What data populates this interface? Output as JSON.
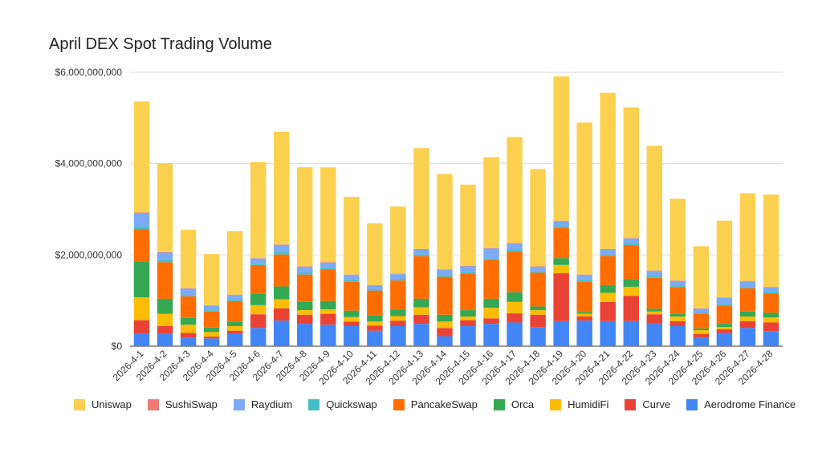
{
  "chart_data": {
    "type": "bar",
    "stacked": true,
    "title": "April DEX Spot Trading Volume",
    "xlabel": "",
    "ylabel": "",
    "ylim": [
      0,
      6000000000
    ],
    "y_ticks": [
      "$0",
      "$2,000,000,000",
      "$4,000,000,000",
      "$6,000,000,000"
    ],
    "grid": true,
    "legend_position": "bottom",
    "categories": [
      "2026-4-1",
      "2026-4-2",
      "2026-4-3",
      "2026-4-4",
      "2026-4-5",
      "2026-4-6",
      "2026-4-7",
      "2026-4-8",
      "2026-4-9",
      "2026-4-10",
      "2026-4-11",
      "2026-4-12",
      "2026-4-13",
      "2026-4-14",
      "2026-4-15",
      "2026-4-16",
      "2026-4-17",
      "2026-4-18",
      "2026-4-19",
      "2026-4-20",
      "2026-4-21",
      "2026-4-22",
      "2026-4-23",
      "2026-4-24",
      "2026-4-25",
      "2026-4-26",
      "2026-4-27",
      "2026-4-28"
    ],
    "series": [
      {
        "name": "Aerodrome Finance",
        "color": "#4285f4",
        "values": [
          270000000,
          280000000,
          180000000,
          170000000,
          280000000,
          400000000,
          560000000,
          490000000,
          470000000,
          440000000,
          340000000,
          440000000,
          490000000,
          220000000,
          440000000,
          490000000,
          520000000,
          420000000,
          550000000,
          560000000,
          550000000,
          550000000,
          510000000,
          440000000,
          180000000,
          290000000,
          400000000,
          330000000
        ]
      },
      {
        "name": "Curve",
        "color": "#ea4335",
        "values": [
          300000000,
          160000000,
          110000000,
          40000000,
          60000000,
          300000000,
          270000000,
          200000000,
          240000000,
          100000000,
          110000000,
          120000000,
          200000000,
          180000000,
          130000000,
          120000000,
          200000000,
          270000000,
          1050000000,
          90000000,
          420000000,
          550000000,
          190000000,
          110000000,
          90000000,
          80000000,
          150000000,
          190000000
        ]
      },
      {
        "name": "HumidiFi",
        "color": "#fbbc04",
        "values": [
          500000000,
          270000000,
          180000000,
          100000000,
          100000000,
          200000000,
          200000000,
          100000000,
          100000000,
          100000000,
          90000000,
          100000000,
          160000000,
          140000000,
          80000000,
          230000000,
          250000000,
          100000000,
          180000000,
          60000000,
          200000000,
          200000000,
          60000000,
          100000000,
          80000000,
          50000000,
          100000000,
          110000000
        ]
      },
      {
        "name": "Orca",
        "color": "#34a853",
        "values": [
          790000000,
          330000000,
          150000000,
          100000000,
          100000000,
          250000000,
          280000000,
          180000000,
          180000000,
          140000000,
          130000000,
          140000000,
          190000000,
          150000000,
          140000000,
          200000000,
          210000000,
          80000000,
          150000000,
          40000000,
          170000000,
          160000000,
          60000000,
          60000000,
          40000000,
          70000000,
          110000000,
          100000000
        ]
      },
      {
        "name": "PancakeSwap",
        "color": "#ff6d01",
        "values": [
          700000000,
          800000000,
          470000000,
          350000000,
          450000000,
          630000000,
          700000000,
          600000000,
          690000000,
          630000000,
          550000000,
          640000000,
          930000000,
          830000000,
          800000000,
          850000000,
          900000000,
          740000000,
          660000000,
          670000000,
          630000000,
          760000000,
          680000000,
          590000000,
          320000000,
          400000000,
          510000000,
          430000000
        ]
      },
      {
        "name": "Quickswap",
        "color": "#46bdc6",
        "values": [
          60000000,
          50000000,
          30000000,
          30000000,
          30000000,
          30000000,
          50000000,
          40000000,
          40000000,
          40000000,
          30000000,
          30000000,
          40000000,
          40000000,
          30000000,
          30000000,
          40000000,
          30000000,
          40000000,
          30000000,
          30000000,
          40000000,
          40000000,
          30000000,
          20000000,
          30000000,
          30000000,
          30000000
        ]
      },
      {
        "name": "Raydium",
        "color": "#7baaf7",
        "values": [
          300000000,
          160000000,
          140000000,
          90000000,
          100000000,
          110000000,
          160000000,
          130000000,
          110000000,
          110000000,
          80000000,
          110000000,
          110000000,
          110000000,
          130000000,
          220000000,
          130000000,
          100000000,
          110000000,
          110000000,
          120000000,
          100000000,
          110000000,
          100000000,
          90000000,
          140000000,
          120000000,
          100000000
        ]
      },
      {
        "name": "SushiSwap",
        "color": "#f07b72",
        "values": [
          10000000,
          10000000,
          10000000,
          10000000,
          10000000,
          10000000,
          10000000,
          10000000,
          10000000,
          10000000,
          10000000,
          10000000,
          10000000,
          10000000,
          10000000,
          10000000,
          10000000,
          10000000,
          10000000,
          10000000,
          10000000,
          10000000,
          10000000,
          10000000,
          10000000,
          10000000,
          10000000,
          10000000
        ]
      },
      {
        "name": "Uniswap",
        "color": "#fcd04f",
        "values": [
          2430000000,
          1950000000,
          1280000000,
          1130000000,
          1390000000,
          2100000000,
          2470000000,
          2170000000,
          2080000000,
          1700000000,
          1350000000,
          1470000000,
          2210000000,
          2090000000,
          1780000000,
          1990000000,
          2320000000,
          2130000000,
          3160000000,
          3330000000,
          3420000000,
          2860000000,
          2730000000,
          1790000000,
          1360000000,
          1680000000,
          1920000000,
          2020000000
        ]
      }
    ]
  }
}
